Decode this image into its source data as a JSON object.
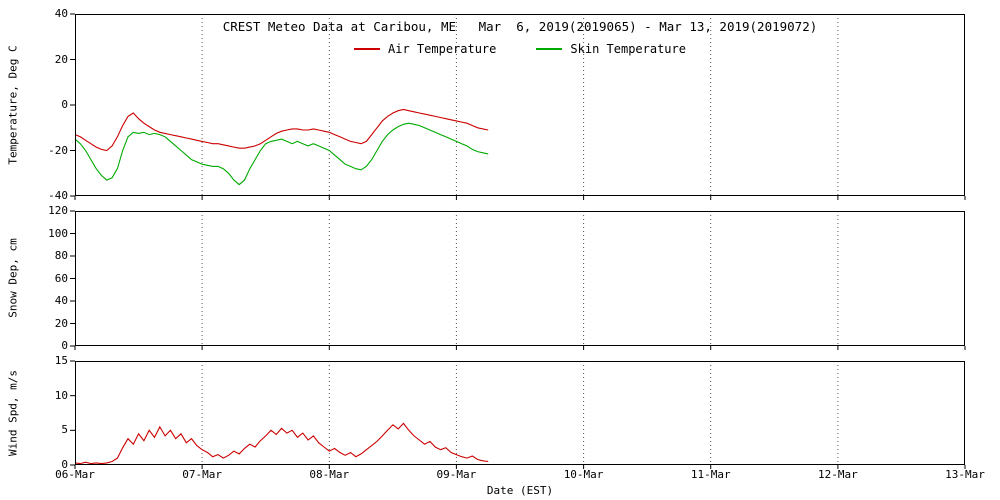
{
  "title": "CREST Meteo Data at Caribou, ME   Mar  6, 2019(2019065) - Mar 13, 2019(2019072)",
  "colors": {
    "air": "#cc0000",
    "skin": "#00aa00",
    "wind": "#cc0000",
    "frame": "#000000",
    "grid": "#555555",
    "background": "#ffffff"
  },
  "legend": [
    {
      "label": "Air Temperature",
      "color": "#cc0000"
    },
    {
      "label": "Skin Temperature",
      "color": "#00aa00"
    }
  ],
  "x_axis": {
    "label": "Date (EST)",
    "ticks": [
      "06-Mar",
      "07-Mar",
      "08-Mar",
      "09-Mar",
      "10-Mar",
      "11-Mar",
      "12-Mar",
      "13-Mar"
    ],
    "range_days": [
      0,
      7
    ]
  },
  "chart_data": [
    {
      "type": "line",
      "panel": "temperature",
      "ylabel": "Temperature, Deg C",
      "ylim": [
        -40,
        40
      ],
      "yticks": [
        -40,
        -20,
        0,
        20,
        40
      ],
      "x_unit": "hours since 06-Mar 00:00 EST",
      "x_start_hour": 0,
      "x_step_hours": 1,
      "grid": "vertical-dotted-daily",
      "series": [
        {
          "name": "Air Temperature",
          "color": "#cc0000",
          "values": [
            -13,
            -14,
            -15.5,
            -17,
            -18.5,
            -19.5,
            -20,
            -18,
            -14,
            -9,
            -5,
            -3.5,
            -6,
            -8,
            -9.5,
            -11,
            -12,
            -12.5,
            -13,
            -13.5,
            -14,
            -14.5,
            -15,
            -15.5,
            -16,
            -16.5,
            -17,
            -17,
            -17.5,
            -18,
            -18.5,
            -19,
            -19,
            -18.5,
            -18,
            -17,
            -15.5,
            -14,
            -12.5,
            -11.5,
            -11,
            -10.5,
            -10.5,
            -11,
            -11,
            -10.5,
            -11,
            -11.5,
            -12,
            -13,
            -14,
            -15,
            -16,
            -16.5,
            -17,
            -16,
            -13,
            -10,
            -7,
            -5,
            -3.5,
            -2.5,
            -2,
            -2.5,
            -3,
            -3.5,
            -4,
            -4.5,
            -5,
            -5.5,
            -6,
            -6.5,
            -7,
            -7.5,
            -8,
            -9,
            -10,
            -10.5,
            -11
          ]
        },
        {
          "name": "Skin Temperature",
          "color": "#00aa00",
          "values": [
            -15,
            -17,
            -20,
            -24,
            -28,
            -31,
            -33,
            -32,
            -28,
            -20,
            -14,
            -12,
            -12.5,
            -12,
            -13,
            -12.5,
            -13,
            -14,
            -16,
            -18,
            -20,
            -22,
            -24,
            -25,
            -26,
            -26.5,
            -27,
            -27,
            -28,
            -30,
            -33,
            -35,
            -33,
            -28,
            -24,
            -20,
            -17,
            -16,
            -15.5,
            -15,
            -16,
            -17,
            -16,
            -17,
            -18,
            -17,
            -18,
            -19,
            -20,
            -22,
            -24,
            -26,
            -27,
            -28,
            -28.5,
            -27,
            -24,
            -20,
            -16,
            -13,
            -11,
            -9.5,
            -8.5,
            -8,
            -8.5,
            -9,
            -10,
            -11,
            -12,
            -13,
            -14,
            -15,
            -16,
            -17,
            -18,
            -19.5,
            -20.5,
            -21,
            -21.5
          ]
        }
      ]
    },
    {
      "type": "line",
      "panel": "snow_depth",
      "ylabel": "Snow Dep, cm",
      "ylim": [
        0,
        120
      ],
      "yticks": [
        0,
        20,
        40,
        60,
        80,
        100,
        120
      ],
      "x_start_hour": 0,
      "x_step_hours": 1,
      "grid": "vertical-dotted-daily",
      "series": []
    },
    {
      "type": "line",
      "panel": "wind_speed",
      "ylabel": "Wind Spd, m/s",
      "ylim": [
        0,
        15
      ],
      "yticks": [
        0,
        5,
        10,
        15
      ],
      "x_start_hour": 0,
      "x_step_hours": 1,
      "grid": "vertical-dotted-daily",
      "series": [
        {
          "name": "Wind Speed",
          "color": "#cc0000",
          "values": [
            0.3,
            0.2,
            0.4,
            0.2,
            0.3,
            0.2,
            0.3,
            0.5,
            1.0,
            2.5,
            3.8,
            3.0,
            4.5,
            3.5,
            5.0,
            4.0,
            5.5,
            4.2,
            5.0,
            3.8,
            4.5,
            3.2,
            3.8,
            2.8,
            2.2,
            1.8,
            1.2,
            1.5,
            1.0,
            1.4,
            2.0,
            1.6,
            2.4,
            3.0,
            2.6,
            3.5,
            4.2,
            5.0,
            4.4,
            5.3,
            4.6,
            5.0,
            4.0,
            4.6,
            3.6,
            4.2,
            3.2,
            2.6,
            2.0,
            2.4,
            1.8,
            1.4,
            1.8,
            1.2,
            1.6,
            2.2,
            2.8,
            3.4,
            4.2,
            5.0,
            5.8,
            5.2,
            6.0,
            5.0,
            4.2,
            3.6,
            3.0,
            3.4,
            2.6,
            2.2,
            2.5,
            1.8,
            1.5,
            1.2,
            1.0,
            1.3,
            0.8,
            0.6,
            0.5
          ]
        }
      ]
    }
  ]
}
